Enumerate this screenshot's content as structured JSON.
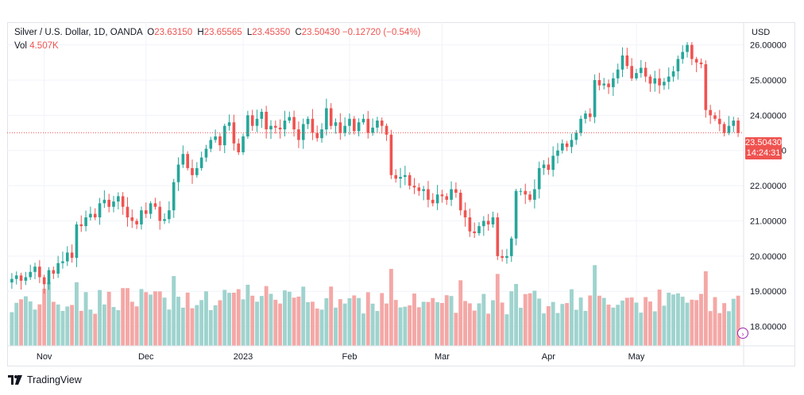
{
  "header": {
    "title": "Silver / U.S. Dollar, 1D, OANDA",
    "o_label": "O",
    "o_value": "23.63150",
    "h_label": "H",
    "h_value": "23.65565",
    "l_label": "L",
    "l_value": "23.45350",
    "c_label": "C",
    "c_value": "23.50430",
    "change": "−0.12720 (−0.54%)",
    "vol_label": "Vol",
    "vol_value": "4.507K"
  },
  "price_axis": {
    "currency": "USD"
  },
  "price_tag": {
    "price": "23.50430",
    "countdown": "14:24:31"
  },
  "footer": {
    "brand": "TradingView"
  },
  "colors": {
    "up": "#26a69a",
    "down": "#ef5350",
    "vol_up": "#9fd3ce",
    "vol_down": "#f4a8a6"
  },
  "chart_data": {
    "type": "candlestick",
    "title": "Silver / U.S. Dollar, 1D, OANDA",
    "ylabel": "USD",
    "ylim": [
      17.45,
      26.6
    ],
    "y_ticks": [
      18,
      19,
      20,
      21,
      22,
      23,
      24,
      25,
      26
    ],
    "y_tick_labels": [
      "18.00000",
      "19.00000",
      "20.00000",
      "21.00000",
      "22.00000",
      "23.00000",
      "24.00000",
      "25.00000",
      "26.00000"
    ],
    "x_tick_labels": [
      {
        "label": "Nov",
        "index": 7
      },
      {
        "label": "Dec",
        "index": 29
      },
      {
        "label": "2023",
        "index": 50
      },
      {
        "label": "Feb",
        "index": 73
      },
      {
        "label": "Mar",
        "index": 93
      },
      {
        "label": "Apr",
        "index": 116
      },
      {
        "label": "May",
        "index": 135
      }
    ],
    "last_price": 23.5043,
    "closes": [
      19.35,
      19.45,
      19.3,
      19.4,
      19.55,
      19.7,
      19.4,
      19.2,
      19.6,
      19.5,
      19.8,
      19.85,
      20.1,
      19.95,
      20.9,
      20.85,
      21.1,
      21.2,
      21.1,
      21.5,
      21.6,
      21.4,
      21.55,
      21.7,
      21.4,
      21.1,
      21.0,
      20.9,
      21.3,
      21.2,
      21.5,
      21.4,
      21.0,
      21.05,
      21.3,
      22.1,
      22.6,
      22.9,
      22.5,
      22.3,
      22.5,
      22.8,
      23.05,
      23.3,
      23.4,
      23.15,
      23.7,
      23.8,
      23.2,
      22.95,
      23.4,
      24.0,
      23.7,
      23.9,
      24.1,
      23.6,
      23.7,
      23.65,
      23.6,
      23.85,
      23.95,
      23.6,
      23.3,
      23.75,
      23.9,
      23.5,
      23.35,
      23.6,
      24.2,
      23.7,
      23.8,
      23.5,
      23.7,
      23.9,
      23.55,
      23.8,
      23.9,
      23.5,
      23.65,
      23.85,
      23.7,
      23.45,
      22.3,
      22.2,
      22.25,
      22.3,
      22.0,
      21.95,
      21.85,
      21.9,
      21.6,
      21.5,
      21.75,
      21.7,
      21.6,
      21.9,
      21.8,
      21.3,
      21.1,
      20.7,
      20.65,
      20.85,
      21.0,
      20.9,
      21.1,
      20.0,
      19.95,
      20.0,
      20.5,
      21.85,
      21.85,
      21.75,
      21.6,
      21.9,
      22.5,
      22.6,
      22.45,
      22.85,
      23.0,
      23.2,
      23.1,
      23.3,
      23.5,
      23.9,
      24.05,
      23.95,
      25.0,
      24.85,
      24.9,
      24.8,
      25.05,
      25.3,
      25.7,
      25.4,
      25.05,
      25.2,
      25.35,
      25.1,
      24.9,
      25.05,
      24.85,
      24.95,
      25.1,
      25.25,
      25.6,
      25.8,
      26.0,
      25.6,
      25.5,
      25.45,
      24.15,
      24.0,
      23.9,
      23.75,
      23.5,
      23.7,
      23.85,
      23.5
    ]
  }
}
